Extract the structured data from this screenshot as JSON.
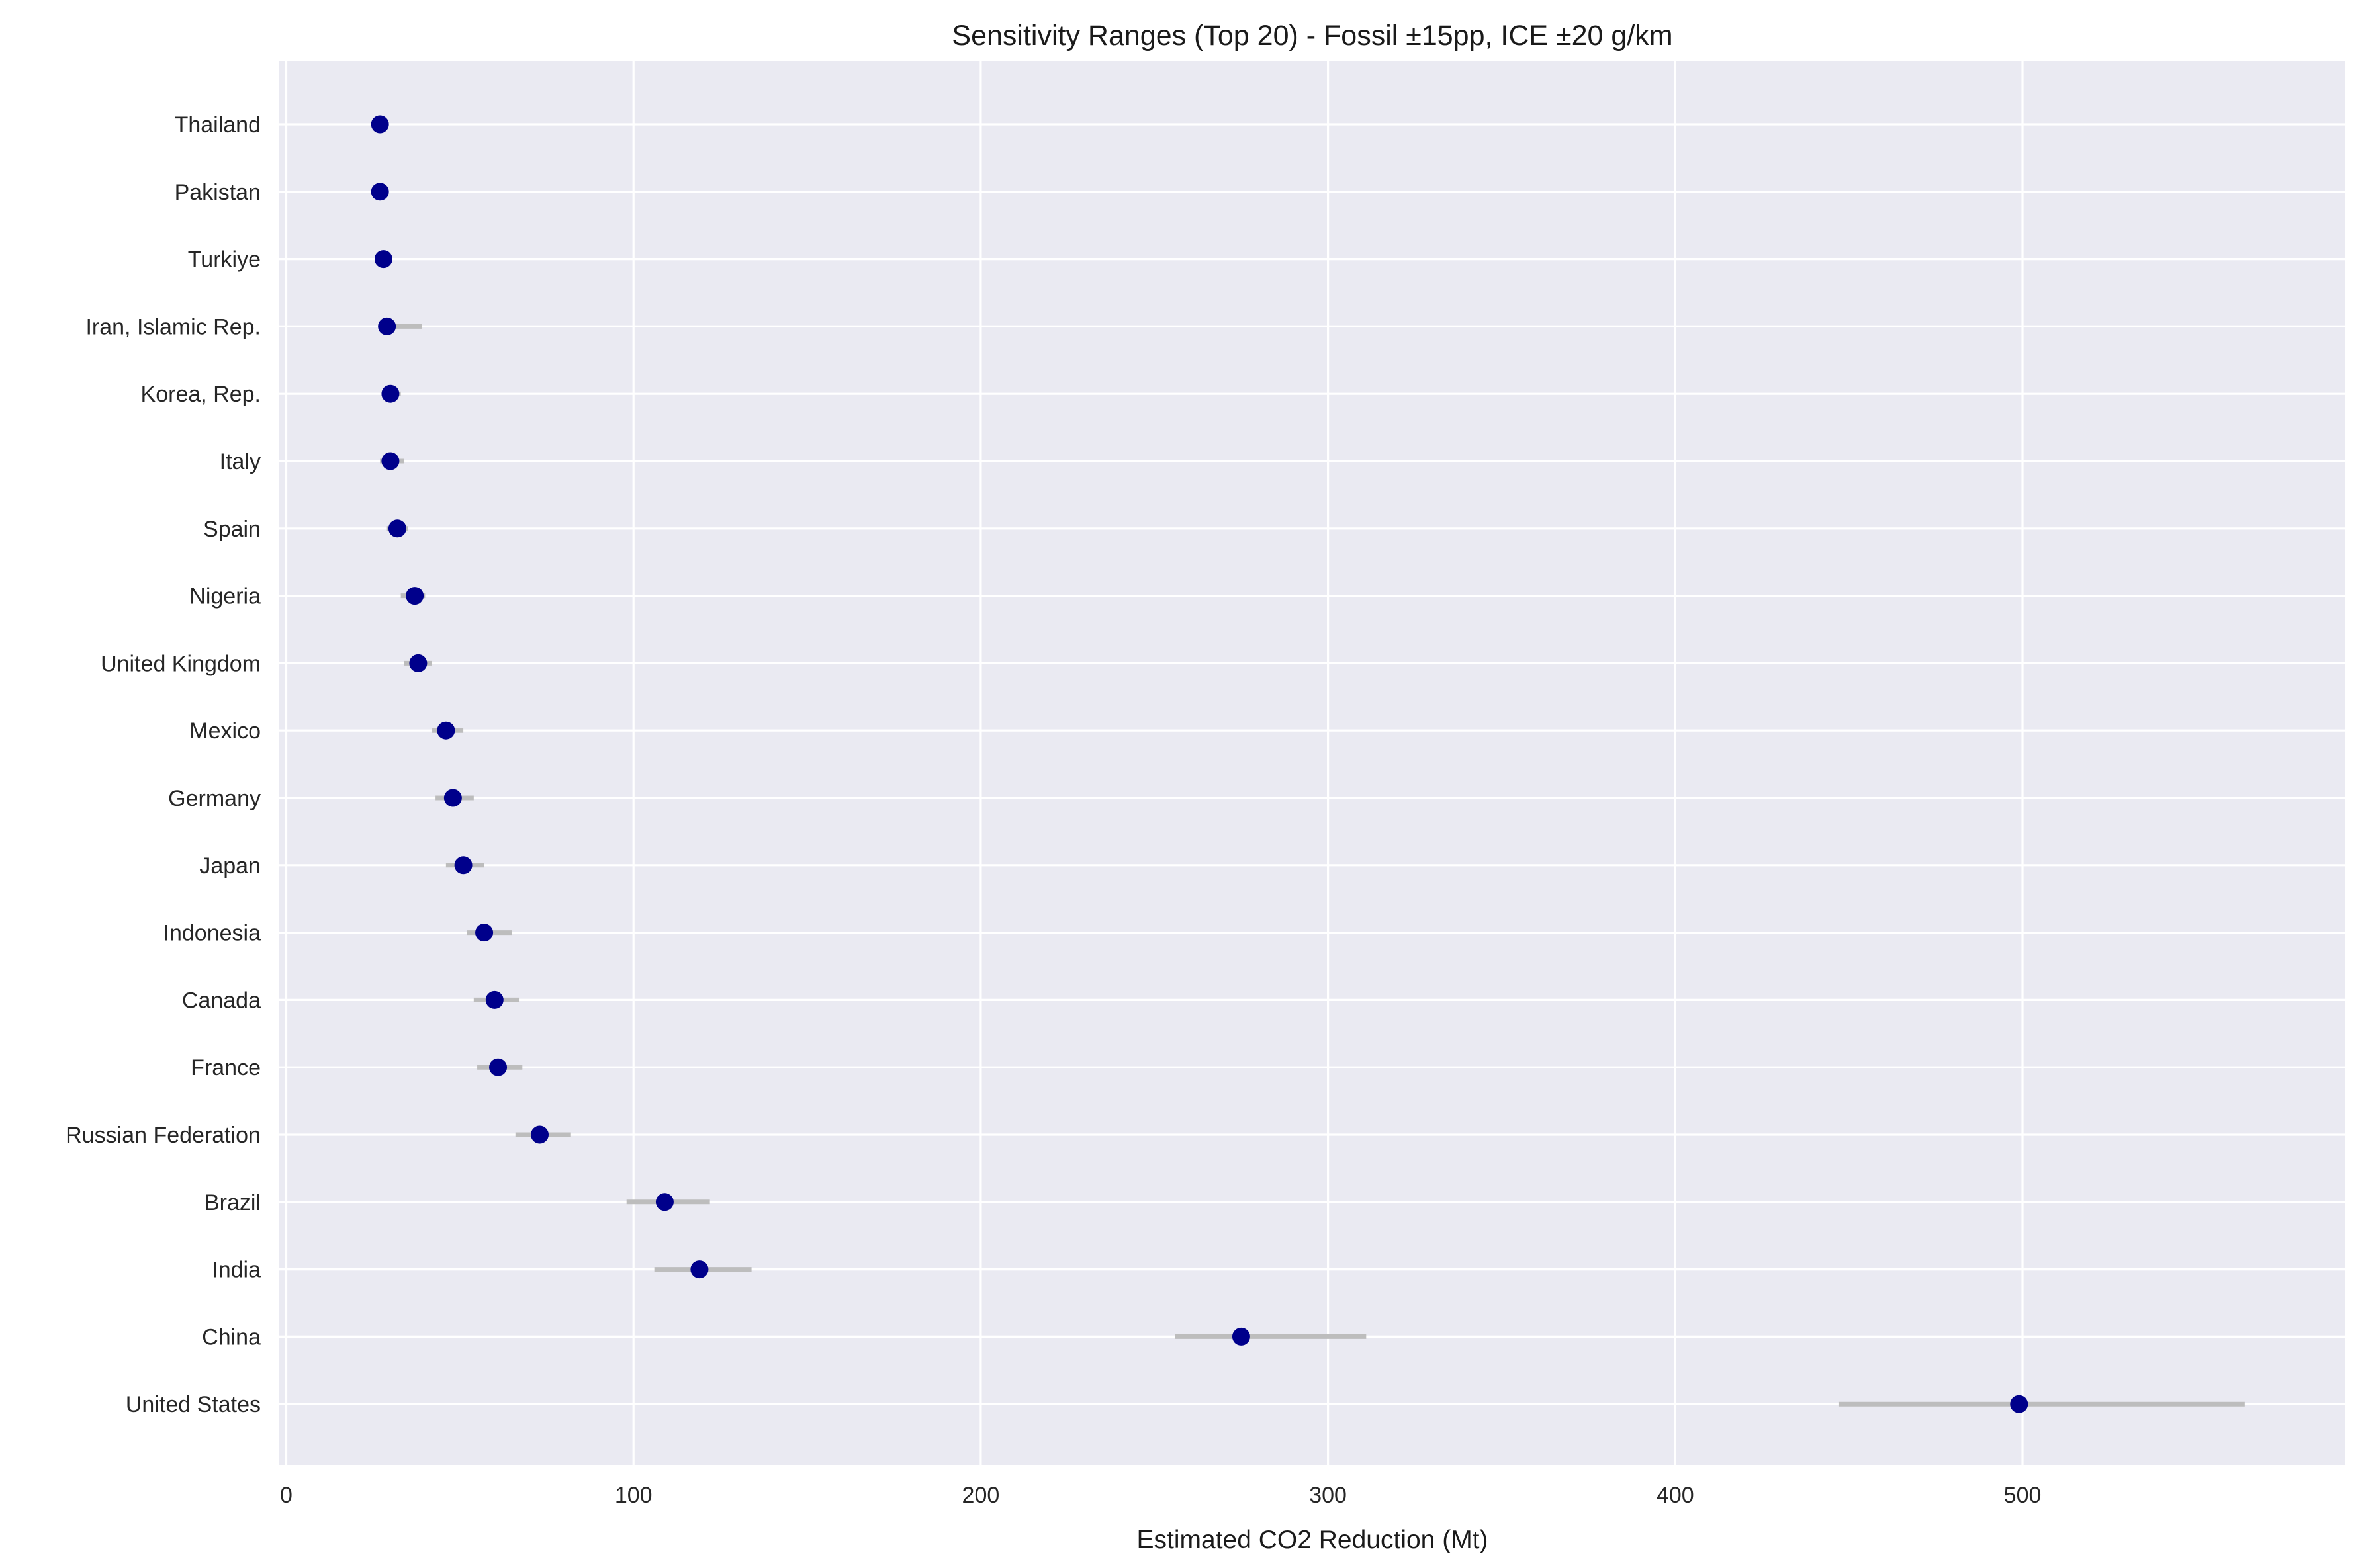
{
  "chart_data": {
    "type": "scatter",
    "title": "Sensitivity Ranges (Top 20) - Fossil ±15pp, ICE ±20 g/km",
    "xlabel": "Estimated CO2 Reduction (Mt)",
    "ylabel": "",
    "xlim": [
      -2,
      593
    ],
    "x_ticks": [
      0,
      100,
      200,
      300,
      400,
      500
    ],
    "grid": true,
    "legend": "none",
    "colors": {
      "background": "#ffffff",
      "plot_background": "#eaeaf2",
      "grid": "#ffffff",
      "point": "#00008b",
      "range": "#bdbdbd"
    },
    "categories": [
      "Thailand",
      "Pakistan",
      "Turkiye",
      "Iran, Islamic Rep.",
      "Korea, Rep.",
      "Italy",
      "Spain",
      "Nigeria",
      "United Kingdom",
      "Mexico",
      "Germany",
      "Japan",
      "Indonesia",
      "Canada",
      "France",
      "Russian Federation",
      "Brazil",
      "India",
      "China",
      "United States"
    ],
    "series": [
      {
        "values": [
          27,
          27,
          28,
          29,
          30,
          30,
          32,
          37,
          38,
          46,
          48,
          51,
          57,
          60,
          61,
          73,
          109,
          119,
          275,
          499
        ],
        "low": [
          25,
          25,
          26,
          27,
          28,
          27,
          29,
          33,
          34,
          42,
          43,
          46,
          52,
          54,
          55,
          66,
          98,
          106,
          256,
          447
        ],
        "high": [
          29,
          29,
          30,
          39,
          33,
          34,
          35,
          40,
          42,
          51,
          54,
          57,
          65,
          67,
          68,
          82,
          122,
          134,
          311,
          564
        ]
      }
    ]
  }
}
